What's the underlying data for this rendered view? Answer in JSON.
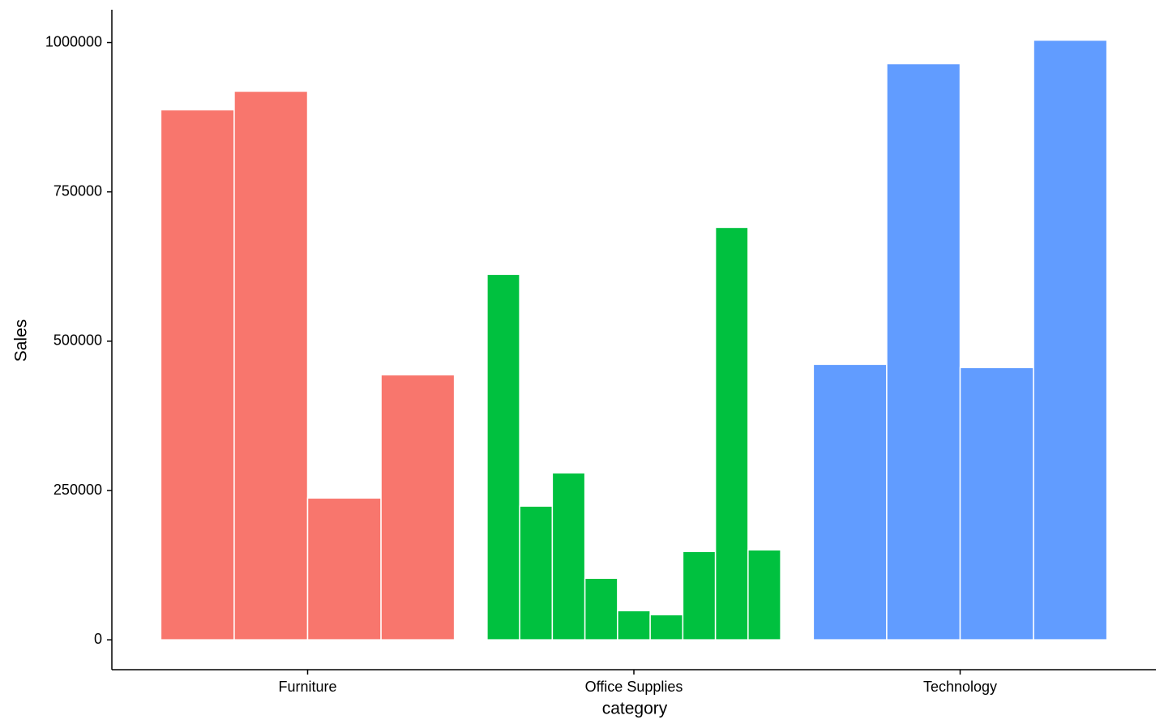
{
  "chart_data": {
    "type": "bar",
    "x_label": "category",
    "y_label": "Sales",
    "groups": [
      {
        "name": "Furniture",
        "color": "#f8766d",
        "values": [
          887400,
          918600,
          237400,
          443700
        ]
      },
      {
        "name": "Office Supplies",
        "color": "#00c13f",
        "values": [
          612000,
          223900,
          279500,
          103100,
          48800,
          42100,
          147900,
          690600,
          150600
        ]
      },
      {
        "name": "Technology",
        "color": "#619cff",
        "values": [
          461300,
          964700,
          455900,
          1004100
        ]
      }
    ],
    "ylim": [
      -50000,
      1055000
    ],
    "yticks": [
      0,
      250000,
      500000,
      750000,
      1000000
    ],
    "grid": false
  }
}
